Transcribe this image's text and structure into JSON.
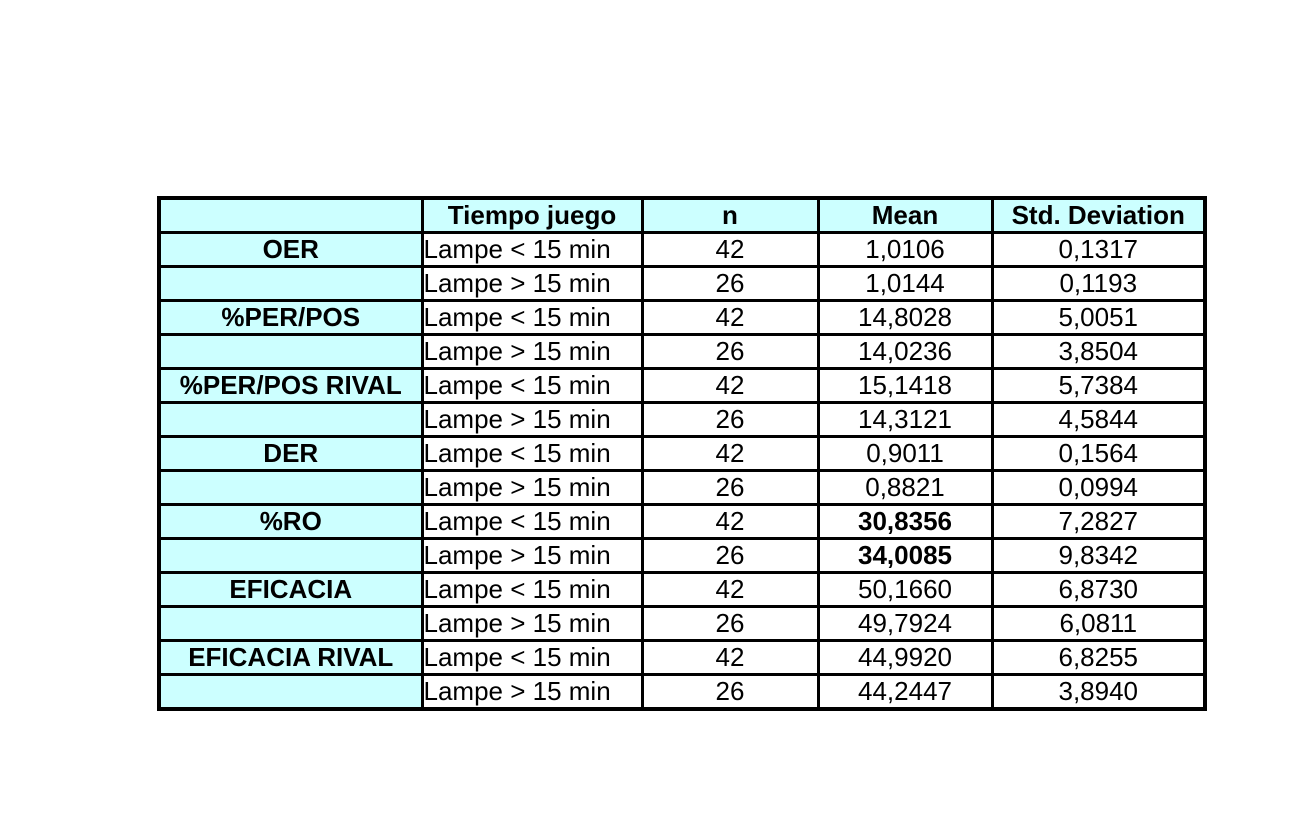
{
  "table": {
    "bg_header_color": "#CCFFFF",
    "border_color": "#000000",
    "highlight_color": "#FF0000",
    "headers": [
      "",
      "Tiempo juego",
      "n",
      "Mean",
      "Std. Deviation"
    ],
    "rows": [
      {
        "label": "OER",
        "tiempo": "Lampe < 15 min",
        "n": "42",
        "mean": "1,0106",
        "std": "0,1317",
        "mean_highlight": false
      },
      {
        "label": "",
        "tiempo": "Lampe > 15 min",
        "n": "26",
        "mean": "1,0144",
        "std": "0,1193",
        "mean_highlight": false
      },
      {
        "label": "%PER/POS",
        "tiempo": "Lampe < 15 min",
        "n": "42",
        "mean": "14,8028",
        "std": "5,0051",
        "mean_highlight": false
      },
      {
        "label": "",
        "tiempo": "Lampe > 15 min",
        "n": "26",
        "mean": "14,0236",
        "std": "3,8504",
        "mean_highlight": false
      },
      {
        "label": "%PER/POS RIVAL",
        "tiempo": "Lampe < 15 min",
        "n": "42",
        "mean": "15,1418",
        "std": "5,7384",
        "mean_highlight": false
      },
      {
        "label": "",
        "tiempo": "Lampe > 15 min",
        "n": "26",
        "mean": "14,3121",
        "std": "4,5844",
        "mean_highlight": false
      },
      {
        "label": "DER",
        "tiempo": "Lampe < 15 min",
        "n": "42",
        "mean": "0,9011",
        "std": "0,1564",
        "mean_highlight": false
      },
      {
        "label": "",
        "tiempo": "Lampe > 15 min",
        "n": "26",
        "mean": "0,8821",
        "std": "0,0994",
        "mean_highlight": false
      },
      {
        "label": "%RO",
        "tiempo": "Lampe < 15 min",
        "n": "42",
        "mean": "30,8356",
        "std": "7,2827",
        "mean_highlight": true
      },
      {
        "label": "",
        "tiempo": "Lampe > 15 min",
        "n": "26",
        "mean": "34,0085",
        "std": "9,8342",
        "mean_highlight": true
      },
      {
        "label": "EFICACIA",
        "tiempo": "Lampe < 15 min",
        "n": "42",
        "mean": "50,1660",
        "std": "6,8730",
        "mean_highlight": false
      },
      {
        "label": "",
        "tiempo": "Lampe > 15 min",
        "n": "26",
        "mean": "49,7924",
        "std": "6,0811",
        "mean_highlight": false
      },
      {
        "label": "EFICACIA RIVAL",
        "tiempo": "Lampe < 15 min",
        "n": "42",
        "mean": "44,9920",
        "std": "6,8255",
        "mean_highlight": false
      },
      {
        "label": "",
        "tiempo": "Lampe > 15 min",
        "n": "26",
        "mean": "44,2447",
        "std": "3,8940",
        "mean_highlight": false
      }
    ]
  },
  "chart_data": {
    "type": "table",
    "columns": [
      "",
      "Tiempo juego",
      "n",
      "Mean",
      "Std. Deviation"
    ],
    "rows": [
      [
        "OER",
        "Lampe < 15 min",
        42,
        "1,0106",
        "0,1317"
      ],
      [
        "",
        "Lampe > 15 min",
        26,
        "1,0144",
        "0,1193"
      ],
      [
        "%PER/POS",
        "Lampe < 15 min",
        42,
        "14,8028",
        "5,0051"
      ],
      [
        "",
        "Lampe > 15 min",
        26,
        "14,0236",
        "3,8504"
      ],
      [
        "%PER/POS RIVAL",
        "Lampe < 15 min",
        42,
        "15,1418",
        "5,7384"
      ],
      [
        "",
        "Lampe > 15 min",
        26,
        "14,3121",
        "4,5844"
      ],
      [
        "DER",
        "Lampe < 15 min",
        42,
        "0,9011",
        "0,1564"
      ],
      [
        "",
        "Lampe > 15 min",
        26,
        "0,8821",
        "0,0994"
      ],
      [
        "%RO",
        "Lampe < 15 min",
        42,
        "30,8356",
        "7,2827"
      ],
      [
        "",
        "Lampe > 15 min",
        26,
        "34,0085",
        "9,8342"
      ],
      [
        "EFICACIA",
        "Lampe < 15 min",
        42,
        "50,1660",
        "6,8730"
      ],
      [
        "",
        "Lampe > 15 min",
        26,
        "49,7924",
        "6,0811"
      ],
      [
        "EFICACIA RIVAL",
        "Lampe < 15 min",
        42,
        "44,9920",
        "6,8255"
      ],
      [
        "",
        "Lampe > 15 min",
        26,
        "44,2447",
        "3,8940"
      ]
    ],
    "highlighted_cells": [
      {
        "row_index": 8,
        "column": "Mean",
        "value": "30,8356",
        "color": "#FF0000",
        "bold": true
      },
      {
        "row_index": 9,
        "column": "Mean",
        "value": "34,0085",
        "color": "#FF0000",
        "bold": true
      }
    ],
    "style_notes": {
      "header_background": "#CCFFFF",
      "label_column_background": "#CCFFFF",
      "grid": "black solid borders"
    }
  }
}
